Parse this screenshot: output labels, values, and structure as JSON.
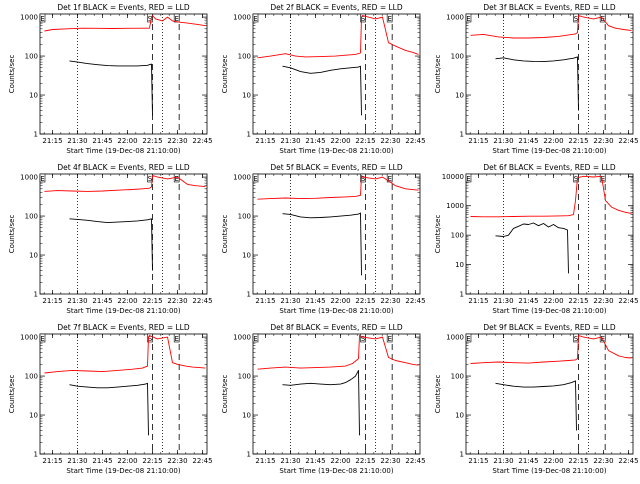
{
  "chart_data": [
    {
      "type": "line",
      "title": "Det 1f BLACK = Events, RED = LLD",
      "xlabel": "Start Time (19-Dec-08 21:10:00)",
      "ylabel": "Counts/sec",
      "x_ticks": [
        "21:15",
        "21:30",
        "21:45",
        "22:00",
        "22:15",
        "22:30",
        "22:45"
      ],
      "y_ticks": [
        "1",
        "10",
        "100",
        "1000"
      ],
      "ylim": [
        1,
        1200
      ],
      "log_scale_y": true,
      "markers": [
        "S",
        "E"
      ],
      "series": [
        {
          "name": "BLACK = Events",
          "color": "#000000",
          "x": [
            21.42,
            21.5,
            21.6,
            21.7,
            21.8,
            21.9,
            22.0,
            22.1,
            22.2,
            22.24,
            22.25
          ],
          "values": [
            75,
            70,
            64,
            60,
            57,
            56,
            56,
            56,
            58,
            62,
            3
          ]
        },
        {
          "name": "RED = LLD",
          "color": "#ff0000",
          "x": [
            21.17,
            21.25,
            21.4,
            21.55,
            21.7,
            21.85,
            22.0,
            22.15,
            22.22,
            22.24,
            22.25,
            22.28,
            22.35,
            22.4,
            22.45,
            22.52,
            22.6,
            22.7,
            22.78
          ],
          "values": [
            440,
            480,
            500,
            520,
            515,
            510,
            515,
            520,
            520,
            1000,
            1100,
            900,
            800,
            1000,
            800,
            740,
            700,
            650,
            600
          ]
        }
      ]
    },
    {
      "type": "line",
      "title": "Det 2f BLACK = Events, RED = LLD",
      "xlabel": "Start Time (19-Dec-08 21:10:00)",
      "ylabel": "Counts/sec",
      "x_ticks": [
        "21:15",
        "21:30",
        "21:45",
        "22:00",
        "22:15",
        "22:30",
        "22:45"
      ],
      "y_ticks": [
        "1",
        "10",
        "100",
        "1000"
      ],
      "ylim": [
        1,
        1200
      ],
      "log_scale_y": true,
      "markers": [
        "S",
        "E"
      ],
      "series": [
        {
          "name": "BLACK = Events",
          "color": "#000000",
          "x": [
            21.42,
            21.5,
            21.6,
            21.7,
            21.8,
            21.9,
            22.0,
            22.1,
            22.18,
            22.2,
            22.21
          ],
          "values": [
            55,
            50,
            40,
            36,
            38,
            43,
            47,
            50,
            52,
            55,
            3
          ]
        },
        {
          "name": "RED = LLD",
          "color": "#ff0000",
          "x": [
            21.17,
            21.3,
            21.45,
            21.55,
            21.65,
            21.8,
            21.95,
            22.05,
            22.15,
            22.2,
            22.21,
            22.22,
            22.35,
            22.42,
            22.48,
            22.55,
            22.65,
            22.72,
            22.78
          ],
          "values": [
            90,
            100,
            115,
            100,
            95,
            97,
            100,
            105,
            110,
            120,
            1000,
            1100,
            900,
            1000,
            220,
            180,
            140,
            125,
            110
          ]
        }
      ]
    },
    {
      "type": "line",
      "title": "Det 3f BLACK = Events, RED = LLD",
      "xlabel": "Start Time (19-Dec-08 21:10:00)",
      "ylabel": "Counts/sec",
      "x_ticks": [
        "21:15",
        "21:30",
        "21:45",
        "22:00",
        "22:15",
        "22:30",
        "22:45"
      ],
      "y_ticks": [
        "1",
        "10",
        "100",
        "1000"
      ],
      "ylim": [
        1,
        1200
      ],
      "log_scale_y": true,
      "markers": [
        "S",
        "E"
      ],
      "series": [
        {
          "name": "BLACK = Events",
          "color": "#000000",
          "x": [
            21.42,
            21.5,
            21.6,
            21.7,
            21.8,
            21.9,
            22.0,
            22.1,
            22.2,
            22.24,
            22.25
          ],
          "values": [
            85,
            90,
            80,
            75,
            73,
            72,
            75,
            80,
            88,
            95,
            4
          ]
        },
        {
          "name": "RED = LLD",
          "color": "#ff0000",
          "x": [
            21.17,
            21.3,
            21.45,
            21.6,
            21.75,
            21.9,
            22.05,
            22.15,
            22.22,
            22.24,
            22.25,
            22.3,
            22.4,
            22.48,
            22.55,
            22.62,
            22.7,
            22.78
          ],
          "values": [
            340,
            360,
            310,
            290,
            290,
            300,
            320,
            350,
            370,
            400,
            1100,
            1000,
            900,
            1000,
            600,
            520,
            480,
            450
          ]
        }
      ]
    },
    {
      "type": "line",
      "title": "Det 4f BLACK = Events, RED = LLD",
      "xlabel": "Start Time (19-Dec-08 21:10:00)",
      "ylabel": "Counts/sec",
      "x_ticks": [
        "21:15",
        "21:30",
        "21:45",
        "22:00",
        "22:15",
        "22:30",
        "22:45"
      ],
      "y_ticks": [
        "1",
        "10",
        "100",
        "1000"
      ],
      "ylim": [
        1,
        1200
      ],
      "log_scale_y": true,
      "markers": [
        "S",
        "E"
      ],
      "series": [
        {
          "name": "BLACK = Events",
          "color": "#000000",
          "x": [
            21.42,
            21.5,
            21.6,
            21.7,
            21.8,
            21.9,
            22.0,
            22.1,
            22.2,
            22.24,
            22.25
          ],
          "values": [
            85,
            82,
            78,
            72,
            68,
            70,
            72,
            75,
            80,
            85,
            4
          ]
        },
        {
          "name": "RED = LLD",
          "color": "#ff0000",
          "x": [
            21.17,
            21.3,
            21.45,
            21.6,
            21.75,
            21.9,
            22.05,
            22.15,
            22.22,
            22.24,
            22.25,
            22.3,
            22.4,
            22.5,
            22.6,
            22.68,
            22.78
          ],
          "values": [
            430,
            450,
            440,
            430,
            440,
            460,
            480,
            500,
            520,
            560,
            1100,
            1000,
            900,
            1000,
            650,
            600,
            570
          ]
        }
      ]
    },
    {
      "type": "line",
      "title": "Det 5f BLACK = Events, RED = LLD",
      "xlabel": "Start Time (19-Dec-08 21:10:00)",
      "ylabel": "Counts/sec",
      "x_ticks": [
        "21:15",
        "21:30",
        "21:45",
        "22:00",
        "22:15",
        "22:30",
        "22:45"
      ],
      "y_ticks": [
        "1",
        "10",
        "100",
        "1000"
      ],
      "ylim": [
        1,
        1200
      ],
      "log_scale_y": true,
      "markers": [
        "S",
        "E"
      ],
      "series": [
        {
          "name": "BLACK = Events",
          "color": "#000000",
          "x": [
            21.42,
            21.5,
            21.6,
            21.7,
            21.8,
            21.9,
            22.0,
            22.1,
            22.18,
            22.2,
            22.21
          ],
          "values": [
            115,
            110,
            95,
            90,
            92,
            95,
            100,
            105,
            112,
            120,
            3
          ]
        },
        {
          "name": "RED = LLD",
          "color": "#ff0000",
          "x": [
            21.17,
            21.3,
            21.45,
            21.6,
            21.75,
            21.9,
            22.05,
            22.15,
            22.2,
            22.21,
            22.22,
            22.35,
            22.42,
            22.48,
            22.55,
            22.65,
            22.78
          ],
          "values": [
            270,
            280,
            290,
            280,
            285,
            300,
            310,
            320,
            340,
            1100,
            1000,
            900,
            1000,
            800,
            600,
            500,
            460
          ]
        }
      ]
    },
    {
      "type": "line",
      "title": "Det 6f BLACK = Events, RED = LLD",
      "xlabel": "Start Time (19-Dec-08 21:10:00)",
      "ylabel": "Counts/sec",
      "x_ticks": [
        "21:15",
        "21:30",
        "21:45",
        "22:00",
        "22:15",
        "22:30",
        "22:45"
      ],
      "y_ticks": [
        "1",
        "10",
        "100",
        "1000",
        "10000"
      ],
      "ylim": [
        1,
        12000
      ],
      "log_scale_y": true,
      "markers": [
        "S",
        "E"
      ],
      "series": [
        {
          "name": "BLACK = Events",
          "color": "#000000",
          "x": [
            21.42,
            21.5,
            21.55,
            21.6,
            21.65,
            21.7,
            21.75,
            21.8,
            21.85,
            21.9,
            21.95,
            22.0,
            22.05,
            22.1,
            22.14,
            22.15
          ],
          "values": [
            95,
            90,
            100,
            170,
            200,
            240,
            230,
            260,
            210,
            250,
            190,
            230,
            180,
            170,
            150,
            5
          ]
        },
        {
          "name": "RED = LLD",
          "color": "#ff0000",
          "x": [
            21.17,
            21.3,
            21.45,
            21.6,
            21.75,
            21.9,
            22.05,
            22.15,
            22.2,
            22.22,
            22.24,
            22.3,
            22.4,
            22.48,
            22.52,
            22.58,
            22.65,
            22.72,
            22.78
          ],
          "values": [
            430,
            420,
            420,
            430,
            440,
            440,
            450,
            460,
            500,
            1500,
            9000,
            10000,
            9500,
            10000,
            1500,
            900,
            700,
            600,
            550
          ]
        }
      ]
    },
    {
      "type": "line",
      "title": "Det 7f BLACK = Events, RED = LLD",
      "xlabel": "Start Time (19-Dec-08 21:10:00)",
      "ylabel": "Counts/sec",
      "x_ticks": [
        "21:15",
        "21:30",
        "21:45",
        "22:00",
        "22:15",
        "22:30",
        "22:45"
      ],
      "y_ticks": [
        "1",
        "10",
        "100",
        "1000"
      ],
      "ylim": [
        1,
        1200
      ],
      "log_scale_y": true,
      "markers": [
        "S",
        "E"
      ],
      "series": [
        {
          "name": "BLACK = Events",
          "color": "#000000",
          "x": [
            21.42,
            21.5,
            21.6,
            21.7,
            21.8,
            21.9,
            22.0,
            22.1,
            22.18,
            22.2,
            22.21
          ],
          "values": [
            60,
            55,
            52,
            50,
            50,
            52,
            55,
            58,
            62,
            65,
            3
          ]
        },
        {
          "name": "RED = LLD",
          "color": "#ff0000",
          "x": [
            21.17,
            21.3,
            21.45,
            21.6,
            21.75,
            21.9,
            22.05,
            22.15,
            22.2,
            22.21,
            22.22,
            22.3,
            22.4,
            22.45,
            22.5,
            22.58,
            22.65,
            22.72,
            22.78
          ],
          "values": [
            120,
            130,
            140,
            135,
            130,
            140,
            150,
            160,
            180,
            1000,
            1100,
            900,
            1000,
            220,
            200,
            180,
            170,
            165,
            160
          ]
        }
      ]
    },
    {
      "type": "line",
      "title": "Det 8f BLACK = Events, RED = LLD",
      "xlabel": "Start Time (19-Dec-08 21:10:00)",
      "ylabel": "Counts/sec",
      "x_ticks": [
        "21:15",
        "21:30",
        "21:45",
        "22:00",
        "22:15",
        "22:30",
        "22:45"
      ],
      "y_ticks": [
        "1",
        "10",
        "100",
        "1000"
      ],
      "ylim": [
        1,
        1200
      ],
      "log_scale_y": true,
      "markers": [
        "S",
        "E"
      ],
      "series": [
        {
          "name": "BLACK = Events",
          "color": "#000000",
          "x": [
            21.42,
            21.5,
            21.6,
            21.7,
            21.8,
            21.9,
            22.0,
            22.05,
            22.1,
            22.15,
            22.18,
            22.19
          ],
          "values": [
            60,
            58,
            62,
            65,
            62,
            60,
            62,
            68,
            80,
            100,
            140,
            3
          ]
        },
        {
          "name": "RED = LLD",
          "color": "#ff0000",
          "x": [
            21.17,
            21.3,
            21.45,
            21.6,
            21.75,
            21.9,
            22.05,
            22.12,
            22.18,
            22.19,
            22.22,
            22.35,
            22.42,
            22.48,
            22.55,
            22.65,
            22.72,
            22.78
          ],
          "values": [
            150,
            160,
            170,
            160,
            165,
            170,
            180,
            210,
            280,
            1100,
            1000,
            900,
            1000,
            300,
            250,
            220,
            200,
            190
          ]
        }
      ]
    },
    {
      "type": "line",
      "title": "Det 9f BLACK = Events, RED = LLD",
      "xlabel": "Start Time (19-Dec-08 21:10:00)",
      "ylabel": "Counts/sec",
      "x_ticks": [
        "21:15",
        "21:30",
        "21:45",
        "22:00",
        "22:15",
        "22:30",
        "22:45"
      ],
      "y_ticks": [
        "1",
        "10",
        "100",
        "1000"
      ],
      "ylim": [
        1,
        1200
      ],
      "log_scale_y": true,
      "markers": [
        "S",
        "E"
      ],
      "series": [
        {
          "name": "BLACK = Events",
          "color": "#000000",
          "x": [
            21.42,
            21.5,
            21.6,
            21.7,
            21.8,
            21.9,
            22.0,
            22.1,
            22.18,
            22.22,
            22.23
          ],
          "values": [
            65,
            60,
            55,
            52,
            52,
            54,
            56,
            60,
            68,
            75,
            4
          ]
        },
        {
          "name": "RED = LLD",
          "color": "#ff0000",
          "x": [
            21.17,
            21.3,
            21.45,
            21.6,
            21.75,
            21.9,
            22.05,
            22.15,
            22.22,
            22.24,
            22.25,
            22.3,
            22.4,
            22.48,
            22.55,
            22.65,
            22.72,
            22.78
          ],
          "values": [
            210,
            220,
            230,
            220,
            215,
            230,
            240,
            250,
            260,
            280,
            1100,
            1000,
            900,
            1000,
            450,
            330,
            300,
            290
          ]
        }
      ]
    }
  ]
}
